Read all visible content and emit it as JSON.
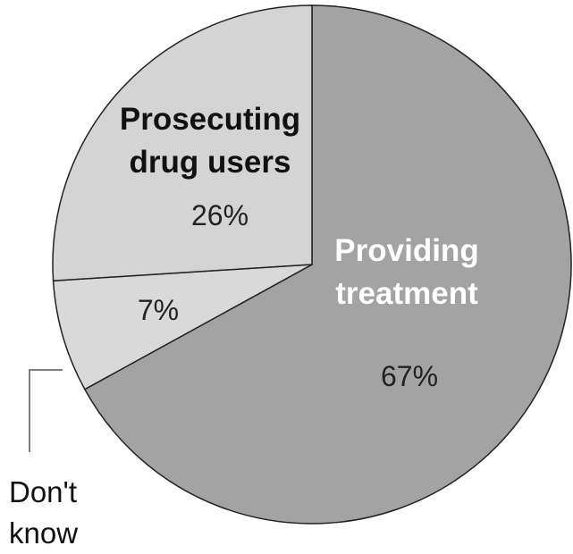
{
  "chart_data": {
    "type": "pie",
    "title": "",
    "slices": [
      {
        "label_lines": [
          "Providing",
          "treatment"
        ],
        "value": 67,
        "value_label": "67%",
        "color": "#a3a3a3",
        "label_color": "#ffffff"
      },
      {
        "label_lines": [],
        "value": 7,
        "value_label": "7%",
        "color": "#d9d9d9",
        "label_color": "#111111"
      },
      {
        "label_lines": [
          "Prosecuting",
          "drug users"
        ],
        "value": 26,
        "value_label": "26%",
        "color": "#d4d4d4",
        "label_color": "#111111"
      }
    ],
    "callout": {
      "label_lines": [
        "Don't",
        "know"
      ],
      "slice_index": 1
    },
    "colors": {
      "outline": "#222222",
      "background": "#ffffff"
    }
  }
}
